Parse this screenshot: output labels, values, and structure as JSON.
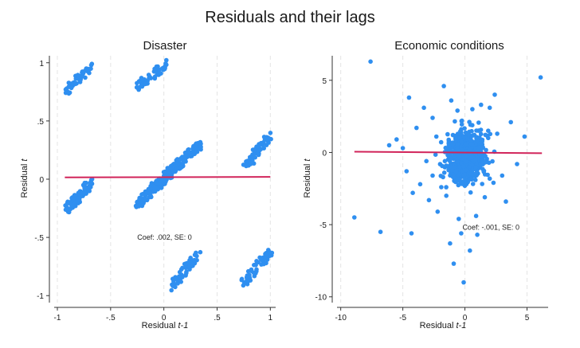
{
  "figure_title": "Residuals and their lags",
  "colors": {
    "points": "#2f8ff0",
    "fit_line": "#d1245a",
    "grid": "#e4e4e4",
    "axis": "#333333"
  },
  "chart_data": [
    {
      "type": "scatter",
      "title": "Disaster",
      "xlabel_main": "Residual ",
      "xlabel_italic": "t-1",
      "ylabel_main": "Residual ",
      "ylabel_italic": "t",
      "xlim": [
        -1.03,
        1.05
      ],
      "ylim": [
        -1.06,
        1.06
      ],
      "xticks": [
        -1,
        -0.5,
        0,
        0.5,
        1
      ],
      "xtick_labels": [
        "-1",
        "-.5",
        "0",
        ".5",
        "1"
      ],
      "yticks": [
        -1,
        -0.5,
        0,
        0.5,
        1
      ],
      "ytick_labels": [
        "-1",
        "-.5",
        "0",
        ".5",
        "1"
      ],
      "fit_line": {
        "x": [
          -0.93,
          1.0
        ],
        "y": [
          0.015,
          0.02
        ]
      },
      "annotation": {
        "text": "Coef: .002, SE: 0",
        "x": -0.25,
        "y": -0.5
      },
      "clusters": [
        {
          "x": [
            -0.92,
            -0.68
          ],
          "y": [
            0.76,
            0.96
          ],
          "n": 45
        },
        {
          "x": [
            -0.25,
            0.03
          ],
          "y": [
            0.79,
            0.99
          ],
          "n": 55
        },
        {
          "x": [
            -0.92,
            -0.67
          ],
          "y": [
            -0.26,
            -0.02
          ],
          "n": 95
        },
        {
          "x": [
            -0.26,
            0.34
          ],
          "y": [
            -0.22,
            0.3
          ],
          "n": 240
        },
        {
          "x": [
            0.76,
            1.0
          ],
          "y": [
            0.1,
            0.38
          ],
          "n": 75
        },
        {
          "x": [
            0.06,
            0.33
          ],
          "y": [
            -0.93,
            -0.63
          ],
          "n": 60
        },
        {
          "x": [
            0.74,
            1.0
          ],
          "y": [
            -0.89,
            -0.63
          ],
          "n": 60
        }
      ]
    },
    {
      "type": "scatter",
      "title": "Economic conditions",
      "xlabel_main": "Residual ",
      "xlabel_italic": "t-1",
      "ylabel_main": "Residual ",
      "ylabel_italic": "t",
      "xlim": [
        -10.3,
        6.7
      ],
      "ylim": [
        -10.4,
        6.7
      ],
      "xticks": [
        -10,
        -5,
        0,
        5
      ],
      "xtick_labels": [
        "-10",
        "-5",
        "0",
        "5"
      ],
      "yticks": [
        -10,
        -5,
        0,
        5
      ],
      "ytick_labels": [
        "-10",
        "-5",
        "0",
        "5"
      ],
      "fit_line": {
        "x": [
          -8.9,
          6.2
        ],
        "y": [
          0.05,
          -0.05
        ]
      },
      "annotation": {
        "text": "Coef: -.001, SE: 0",
        "x": -0.2,
        "y": -5.2
      },
      "core": {
        "x_center": 0.1,
        "y_center": -0.3,
        "x_spread": 0.75,
        "y_spread": 0.85,
        "n": 700
      },
      "scatter_points": [
        {
          "x": -7.6,
          "y": 6.3
        },
        {
          "x": 6.1,
          "y": 5.2
        },
        {
          "x": -8.9,
          "y": -4.5
        },
        {
          "x": -6.8,
          "y": -5.5
        },
        {
          "x": -4.3,
          "y": -5.6
        },
        {
          "x": -0.9,
          "y": -7.7
        },
        {
          "x": -0.1,
          "y": -9.0
        },
        {
          "x": 0.4,
          "y": -6.8
        },
        {
          "x": -4.5,
          "y": 3.8
        },
        {
          "x": -1.7,
          "y": 4.6
        },
        {
          "x": -3.3,
          "y": 3.1
        },
        {
          "x": -1.1,
          "y": 3.6
        },
        {
          "x": 2.4,
          "y": 4.0
        },
        {
          "x": 4.8,
          "y": 1.1
        },
        {
          "x": 3.7,
          "y": 2.1
        },
        {
          "x": -5.5,
          "y": 0.9
        },
        {
          "x": -5.0,
          "y": 0.3
        },
        {
          "x": -3.9,
          "y": 1.7
        },
        {
          "x": -2.6,
          "y": 2.4
        },
        {
          "x": -4.7,
          "y": -1.3
        },
        {
          "x": -3.6,
          "y": -2.2
        },
        {
          "x": -4.2,
          "y": -2.8
        },
        {
          "x": -2.9,
          "y": -3.3
        },
        {
          "x": -2.2,
          "y": -4.1
        },
        {
          "x": -1.5,
          "y": -3.0
        },
        {
          "x": -0.5,
          "y": -4.6
        },
        {
          "x": -0.3,
          "y": -5.6
        },
        {
          "x": -1.2,
          "y": -6.3
        },
        {
          "x": 0.9,
          "y": -4.4
        },
        {
          "x": 1.6,
          "y": -3.1
        },
        {
          "x": 2.3,
          "y": -2.1
        },
        {
          "x": 3.0,
          "y": -1.6
        },
        {
          "x": 3.3,
          "y": -3.4
        },
        {
          "x": 2.0,
          "y": 3.1
        },
        {
          "x": 1.3,
          "y": 3.3
        },
        {
          "x": -2.3,
          "y": 1.1
        },
        {
          "x": -3.1,
          "y": -0.6
        },
        {
          "x": -2.6,
          "y": -1.6
        },
        {
          "x": 4.2,
          "y": -0.8
        },
        {
          "x": 1.0,
          "y": -5.7
        },
        {
          "x": -6.1,
          "y": 0.5
        },
        {
          "x": -0.6,
          "y": 2.9
        },
        {
          "x": 0.6,
          "y": 3.0
        },
        {
          "x": -1.9,
          "y": -2.4
        },
        {
          "x": 2.6,
          "y": 1.3
        }
      ]
    }
  ]
}
